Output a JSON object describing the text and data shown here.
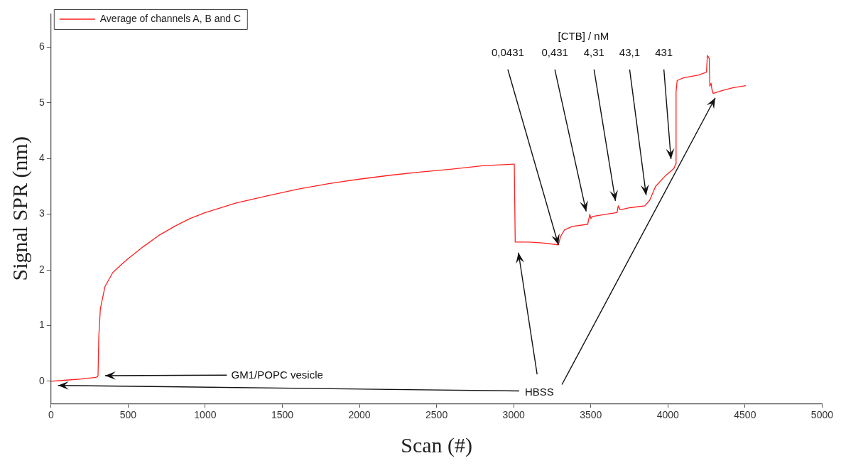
{
  "chart_data": {
    "type": "line",
    "xlabel": "Scan (#)",
    "ylabel": "Signal SPR (nm)",
    "xlim": [
      0,
      5000
    ],
    "xticks": [
      0,
      500,
      1000,
      1500,
      2000,
      2500,
      3000,
      3500,
      4000,
      4500,
      5000
    ],
    "ylim": [
      -0.4,
      6.6
    ],
    "yticks": [
      0,
      1,
      2,
      3,
      4,
      5,
      6
    ],
    "grid": false,
    "legend": "top left",
    "marker": "none",
    "line_style": "solid",
    "series": [
      {
        "name": "Average of channels A, B and C",
        "color": "#ff2020",
        "x": [
          0,
          100,
          200,
          290,
          300,
          305,
          310,
          320,
          350,
          400,
          450,
          500,
          600,
          700,
          800,
          900,
          1000,
          1200,
          1400,
          1600,
          1800,
          2000,
          2200,
          2400,
          2600,
          2800,
          3000,
          3004,
          3010,
          3100,
          3200,
          3290,
          3304,
          3330,
          3380,
          3480,
          3494,
          3500,
          3510,
          3600,
          3670,
          3678,
          3690,
          3760,
          3850,
          3882,
          3920,
          3980,
          4039,
          4050,
          4053,
          4060,
          4100,
          4200,
          4250,
          4256,
          4268,
          4272,
          4280,
          4285,
          4293,
          4350,
          4420,
          4505
        ],
        "values": [
          0,
          0.02,
          0.04,
          0.07,
          0.08,
          0.1,
          0.8,
          1.3,
          1.7,
          1.95,
          2.08,
          2.2,
          2.42,
          2.62,
          2.78,
          2.92,
          3.03,
          3.2,
          3.33,
          3.45,
          3.55,
          3.63,
          3.7,
          3.76,
          3.81,
          3.87,
          3.9,
          3.9,
          2.5,
          2.5,
          2.48,
          2.45,
          2.6,
          2.72,
          2.78,
          2.82,
          3.0,
          2.92,
          2.96,
          3.0,
          3.03,
          3.15,
          3.08,
          3.12,
          3.15,
          3.25,
          3.5,
          3.68,
          3.82,
          3.9,
          5.2,
          5.4,
          5.45,
          5.5,
          5.55,
          5.85,
          5.8,
          5.3,
          5.35,
          5.25,
          5.17,
          5.22,
          5.27,
          5.31
        ]
      }
    ],
    "annotations": [
      "[CTB] / nM",
      {
        "text": "0,0431",
        "x": 3290,
        "y": 2.45
      },
      "0,431",
      "4,31",
      "43,1",
      "431",
      "GM1/POPC vesicle",
      "HBSS"
    ]
  }
}
